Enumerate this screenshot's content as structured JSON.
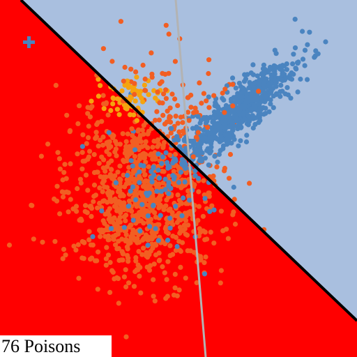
{
  "status": {
    "poison_count_text": "76 Poisons"
  },
  "colors": {
    "region_negative": "#ff0000",
    "region_positive": "#a9bfdf",
    "boundary_line": "#000000",
    "secondary_line": "#b3b3b3",
    "class_blue": "#4a84c0",
    "class_orange": "#f25e22",
    "class_yellow": "#f5a40f",
    "marker_plus": "#4a84c0"
  },
  "icons": {
    "target_marker": "plus-icon"
  }
}
